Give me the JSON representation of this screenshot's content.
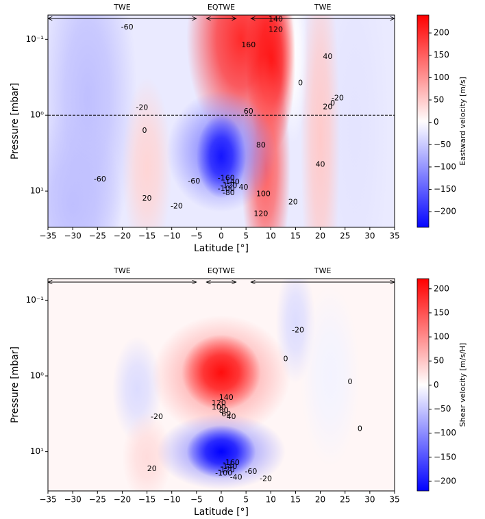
{
  "chart_data": [
    {
      "type": "contour",
      "xlabel": "Latitude [°]",
      "ylabel": "Pressure [mbar]",
      "colorbar_label": "Eastward velocity [m/s]",
      "xlim": [
        -35,
        35
      ],
      "xticks": [
        {
          "value": -35,
          "label": "−35"
        },
        {
          "value": -30,
          "label": "−30"
        },
        {
          "value": -25,
          "label": "−25"
        },
        {
          "value": -20,
          "label": "−20"
        },
        {
          "value": -15,
          "label": "−15"
        },
        {
          "value": -10,
          "label": "−10"
        },
        {
          "value": -5,
          "label": "−5"
        },
        0,
        5,
        10,
        15,
        20,
        25,
        30,
        35
      ],
      "ylim": [
        0.048,
        30
      ],
      "yscale": "log",
      "yinvert": true,
      "yticks": [
        {
          "value": 0.1,
          "label": "10⁻¹"
        },
        {
          "value": 1,
          "label": "10⁰"
        },
        {
          "value": 10,
          "label": "10¹"
        }
      ],
      "clim": [
        -235,
        240
      ],
      "cticks": [
        {
          "value": -200,
          "label": "−200"
        },
        {
          "value": -150,
          "label": "−150"
        },
        {
          "value": -100,
          "label": "−100"
        },
        {
          "value": -50,
          "label": "−50"
        },
        0,
        50,
        100,
        150,
        200
      ],
      "hline": 1,
      "regions": [
        {
          "label": "TWE",
          "from": -35,
          "to": -5
        },
        {
          "label": "EQTWE",
          "from": -3,
          "to": 3
        },
        {
          "label": "TWE",
          "from": 6,
          "to": 35
        }
      ],
      "base": -20,
      "features": [
        {
          "lat": -27,
          "p": 0.6,
          "width": 10,
          "height": 2.2,
          "value": -60
        },
        {
          "lat": -30,
          "p": 15,
          "width": 10,
          "height": 1.2,
          "value": -60
        },
        {
          "lat": 27,
          "p": 1.5,
          "width": 7,
          "height": 2.5,
          "value": -25
        },
        {
          "lat": -15,
          "p": 5,
          "width": 5,
          "height": 1.2,
          "value": 40
        },
        {
          "lat": 20,
          "p": 2,
          "width": 4,
          "height": 2.5,
          "value": 50
        },
        {
          "lat": 14.5,
          "p": 0.15,
          "width": 3,
          "height": 1.2,
          "value": 0
        },
        {
          "lat": 4,
          "p": 0.1,
          "width": 11,
          "height": 1.4,
          "value": 200
        },
        {
          "lat": 10,
          "p": 0.2,
          "width": 5,
          "height": 1.2,
          "value": 220
        },
        {
          "lat": 9,
          "p": 5,
          "width": 5,
          "height": 1.5,
          "value": 150
        },
        {
          "lat": 0,
          "p": 3,
          "width": 11,
          "height": 0.8,
          "value": -110
        },
        {
          "lat": 0,
          "p": 3.5,
          "width": 5,
          "height": 0.55,
          "value": -220
        }
      ],
      "contour_labels": [
        {
          "value": -60,
          "lat": -19,
          "p": 0.07
        },
        {
          "value": 140,
          "lat": 11,
          "p": 0.055
        },
        {
          "value": 120,
          "lat": 11,
          "p": 0.075
        },
        {
          "value": 160,
          "lat": 5.5,
          "p": 0.12
        },
        {
          "value": 40,
          "lat": 21.5,
          "p": 0.17
        },
        {
          "value": 0,
          "lat": 16,
          "p": 0.38
        },
        {
          "value": -20,
          "lat": 23.5,
          "p": 0.6
        },
        {
          "value": 0,
          "lat": 22.5,
          "p": 0.7
        },
        {
          "value": 20,
          "lat": 21.5,
          "p": 0.78
        },
        {
          "value": -20,
          "lat": -16,
          "p": 0.8
        },
        {
          "value": 60,
          "lat": 5.5,
          "p": 0.9
        },
        {
          "value": 0,
          "lat": -15.5,
          "p": 1.6
        },
        {
          "value": 80,
          "lat": 8,
          "p": 2.5
        },
        {
          "value": 40,
          "lat": 20,
          "p": 4.5
        },
        {
          "value": -60,
          "lat": -24.5,
          "p": 7
        },
        {
          "value": -60,
          "lat": -5.5,
          "p": 7.5
        },
        {
          "value": -160,
          "lat": 1,
          "p": 6.8
        },
        {
          "value": -140,
          "lat": 2,
          "p": 7.6
        },
        {
          "value": -120,
          "lat": 1.5,
          "p": 8.5
        },
        {
          "value": -100,
          "lat": 1,
          "p": 9.4
        },
        {
          "value": 40,
          "lat": 4.5,
          "p": 9
        },
        {
          "value": -80,
          "lat": 1.5,
          "p": 10.6
        },
        {
          "value": 100,
          "lat": 8.5,
          "p": 11
        },
        {
          "value": 20,
          "lat": -15,
          "p": 12.5
        },
        {
          "value": 20,
          "lat": 14.5,
          "p": 14
        },
        {
          "value": -20,
          "lat": -9,
          "p": 16
        },
        {
          "value": 120,
          "lat": 8,
          "p": 20
        }
      ]
    },
    {
      "type": "contour",
      "xlabel": "Latitude [°]",
      "ylabel": "Pressure [mbar]",
      "colorbar_label": "Shear velocity [m/s/H]",
      "xlim": [
        -35,
        35
      ],
      "xticks": [
        {
          "value": -35,
          "label": "−35"
        },
        {
          "value": -30,
          "label": "−30"
        },
        {
          "value": -25,
          "label": "−25"
        },
        {
          "value": -20,
          "label": "−20"
        },
        {
          "value": -15,
          "label": "−15"
        },
        {
          "value": -10,
          "label": "−10"
        },
        {
          "value": -5,
          "label": "−5"
        },
        0,
        5,
        10,
        15,
        20,
        25,
        30,
        35
      ],
      "ylim": [
        0.052,
        33
      ],
      "yscale": "log",
      "yinvert": true,
      "yticks": [
        {
          "value": 0.1,
          "label": "10⁻¹"
        },
        {
          "value": 1,
          "label": "10⁰"
        },
        {
          "value": 10,
          "label": "10¹"
        }
      ],
      "clim": [
        -220,
        221
      ],
      "cticks": [
        {
          "value": -200,
          "label": "−200"
        },
        {
          "value": -150,
          "label": "−150"
        },
        {
          "value": -100,
          "label": "−100"
        },
        {
          "value": -50,
          "label": "−50"
        },
        0,
        50,
        100,
        150,
        200
      ],
      "regions": [
        {
          "label": "TWE",
          "from": -35,
          "to": -5
        },
        {
          "label": "EQTWE",
          "from": -3,
          "to": 3
        },
        {
          "label": "TWE",
          "from": 6,
          "to": 35
        }
      ],
      "base": 8,
      "features": [
        {
          "lat": 15,
          "p": 0.2,
          "width": 4,
          "height": 0.8,
          "value": -30
        },
        {
          "lat": -17,
          "p": 1.5,
          "width": 5,
          "height": 0.7,
          "value": -30
        },
        {
          "lat": 22,
          "p": 1,
          "width": 6,
          "height": 1.2,
          "value": -10
        },
        {
          "lat": -15,
          "p": 12,
          "width": 5,
          "height": 0.6,
          "value": 30
        },
        {
          "lat": 0,
          "p": 1,
          "width": 14,
          "height": 0.8,
          "value": 80
        },
        {
          "lat": 0,
          "p": 0.9,
          "width": 8,
          "height": 0.5,
          "value": 210
        },
        {
          "lat": 0,
          "p": 10,
          "width": 13,
          "height": 0.5,
          "value": -90
        },
        {
          "lat": 0,
          "p": 10,
          "width": 7,
          "height": 0.35,
          "value": -220
        }
      ],
      "contour_labels": [
        {
          "value": -20,
          "lat": 15.5,
          "p": 0.25
        },
        {
          "value": 0,
          "lat": 13,
          "p": 0.6
        },
        {
          "value": 0,
          "lat": 26,
          "p": 1.2
        },
        {
          "value": -20,
          "lat": -13,
          "p": 3.5
        },
        {
          "value": 140,
          "lat": 1,
          "p": 1.95
        },
        {
          "value": 120,
          "lat": -0.5,
          "p": 2.3
        },
        {
          "value": 100,
          "lat": -0.5,
          "p": 2.6
        },
        {
          "value": 80,
          "lat": 0.5,
          "p": 2.9
        },
        {
          "value": 60,
          "lat": 1,
          "p": 3.2
        },
        {
          "value": 40,
          "lat": 2,
          "p": 3.5
        },
        {
          "value": 0,
          "lat": 28,
          "p": 5
        },
        {
          "value": 20,
          "lat": -14,
          "p": 17
        },
        {
          "value": -160,
          "lat": 2,
          "p": 14
        },
        {
          "value": -140,
          "lat": 1.5,
          "p": 16
        },
        {
          "value": -120,
          "lat": 1,
          "p": 17.5
        },
        {
          "value": -100,
          "lat": 0.5,
          "p": 19.5
        },
        {
          "value": -60,
          "lat": 6,
          "p": 18.5
        },
        {
          "value": -40,
          "lat": 3,
          "p": 22
        },
        {
          "value": -20,
          "lat": 9,
          "p": 23
        }
      ]
    }
  ]
}
